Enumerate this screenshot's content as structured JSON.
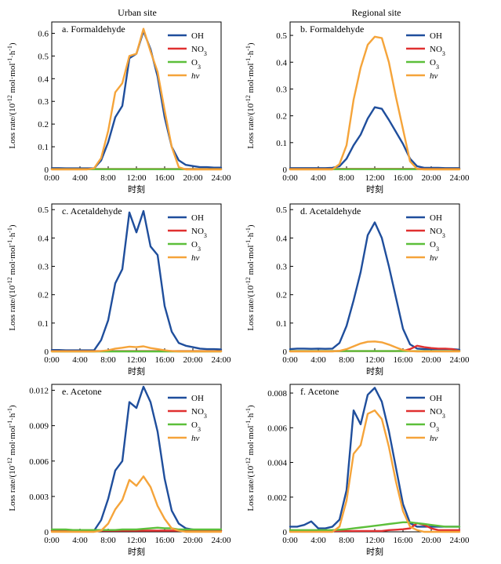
{
  "column_titles": {
    "left": "Urban site",
    "right": "Regional site"
  },
  "ylabel": "Loss rate/(10⁻¹² mol·mol⁻¹·h⁻¹)",
  "xlabel": "时刻",
  "x_tick_labels": [
    "0:00",
    "4:00",
    "8:00",
    "12:00",
    "16:00",
    "20:00",
    "24:00"
  ],
  "legend": [
    {
      "key": "OH",
      "label": "OH",
      "color": "#1f4e9c",
      "italic": false
    },
    {
      "key": "NO3",
      "label": "NO3",
      "color": "#e03030",
      "italic": false
    },
    {
      "key": "O3",
      "label": "O3",
      "color": "#5cbf3a",
      "italic": false
    },
    {
      "key": "hv",
      "label": "hv",
      "color": "#f5a43a",
      "italic": true
    }
  ],
  "chart_data": [
    {
      "type": "line",
      "title": "a. Formaldehyde",
      "site": "Urban site",
      "xlim": [
        0,
        24
      ],
      "ylim": [
        0,
        0.65
      ],
      "yticks": [
        0,
        0.1,
        0.2,
        0.3,
        0.4,
        0.5,
        0.6
      ],
      "ytick_labels": [
        "0",
        "0.1",
        "0.2",
        "0.3",
        "0.4",
        "0.5",
        "0.6"
      ],
      "x": [
        0,
        1,
        2,
        3,
        4,
        5,
        6,
        7,
        8,
        9,
        10,
        11,
        12,
        13,
        14,
        15,
        16,
        17,
        18,
        19,
        20,
        21,
        22,
        23,
        24
      ],
      "series": [
        {
          "name": "OH",
          "values": [
            0.006,
            0.006,
            0.005,
            0.005,
            0.005,
            0.005,
            0.005,
            0.04,
            0.12,
            0.23,
            0.28,
            0.49,
            0.51,
            0.61,
            0.53,
            0.41,
            0.23,
            0.1,
            0.04,
            0.02,
            0.015,
            0.01,
            0.01,
            0.008,
            0.008
          ]
        },
        {
          "name": "NO3",
          "values": [
            0.002,
            0.002,
            0.002,
            0.002,
            0.002,
            0.002,
            0.002,
            0.002,
            0.002,
            0.002,
            0.002,
            0.002,
            0.002,
            0.002,
            0.002,
            0.002,
            0.002,
            0.002,
            0.002,
            0.002,
            0.002,
            0.002,
            0.002,
            0.002,
            0.002
          ]
        },
        {
          "name": "O3",
          "values": [
            0.001,
            0.001,
            0.001,
            0.001,
            0.001,
            0.001,
            0.001,
            0.001,
            0.001,
            0.001,
            0.001,
            0.001,
            0.001,
            0.001,
            0.001,
            0.001,
            0.001,
            0.001,
            0.001,
            0.001,
            0.001,
            0.001,
            0.001,
            0.001,
            0.001
          ]
        },
        {
          "name": "hv",
          "values": [
            0,
            0,
            0,
            0,
            0,
            0,
            0.005,
            0.05,
            0.17,
            0.34,
            0.38,
            0.5,
            0.51,
            0.62,
            0.52,
            0.43,
            0.26,
            0.1,
            0.01,
            0,
            0,
            0,
            0,
            0,
            0
          ]
        }
      ]
    },
    {
      "type": "line",
      "title": "b. Formaldehyde",
      "site": "Regional site",
      "xlim": [
        0,
        24
      ],
      "ylim": [
        0,
        0.55
      ],
      "yticks": [
        0,
        0.1,
        0.2,
        0.3,
        0.4,
        0.5
      ],
      "ytick_labels": [
        "0",
        "0.1",
        "0.2",
        "0.3",
        "0.4",
        "0.5"
      ],
      "x": [
        0,
        1,
        2,
        3,
        4,
        5,
        6,
        7,
        8,
        9,
        10,
        11,
        12,
        13,
        14,
        15,
        16,
        17,
        18,
        19,
        20,
        21,
        22,
        23,
        24
      ],
      "series": [
        {
          "name": "OH",
          "values": [
            0.005,
            0.005,
            0.005,
            0.005,
            0.005,
            0.005,
            0.006,
            0.012,
            0.04,
            0.09,
            0.13,
            0.19,
            0.232,
            0.226,
            0.185,
            0.14,
            0.095,
            0.04,
            0.012,
            0.006,
            0.006,
            0.006,
            0.005,
            0.005,
            0.005
          ]
        },
        {
          "name": "NO3",
          "values": [
            0.002,
            0.002,
            0.002,
            0.002,
            0.002,
            0.002,
            0.002,
            0.002,
            0.002,
            0.002,
            0.002,
            0.002,
            0.002,
            0.002,
            0.002,
            0.002,
            0.002,
            0.002,
            0.002,
            0.002,
            0.002,
            0.002,
            0.002,
            0.002,
            0.002
          ]
        },
        {
          "name": "O3",
          "values": [
            0.001,
            0.001,
            0.001,
            0.001,
            0.001,
            0.001,
            0.001,
            0.001,
            0.001,
            0.001,
            0.001,
            0.001,
            0.001,
            0.001,
            0.001,
            0.001,
            0.001,
            0.001,
            0.001,
            0.001,
            0.001,
            0.001,
            0.001,
            0.001,
            0.001
          ]
        },
        {
          "name": "hv",
          "values": [
            0,
            0,
            0,
            0,
            0,
            0,
            0,
            0.02,
            0.09,
            0.26,
            0.38,
            0.465,
            0.495,
            0.49,
            0.4,
            0.27,
            0.15,
            0.03,
            0.002,
            0,
            0,
            0,
            0,
            0,
            0
          ]
        }
      ]
    },
    {
      "type": "line",
      "title": "c. Acetaldehyde",
      "site": "Urban site",
      "xlim": [
        0,
        24
      ],
      "ylim": [
        0,
        0.52
      ],
      "yticks": [
        0,
        0.1,
        0.2,
        0.3,
        0.4,
        0.5
      ],
      "ytick_labels": [
        "0",
        "0.1",
        "0.2",
        "0.3",
        "0.4",
        "0.5"
      ],
      "x": [
        0,
        1,
        2,
        3,
        4,
        5,
        6,
        7,
        8,
        9,
        10,
        11,
        12,
        13,
        14,
        15,
        16,
        17,
        18,
        19,
        20,
        21,
        22,
        23,
        24
      ],
      "series": [
        {
          "name": "OH",
          "values": [
            0.005,
            0.005,
            0.004,
            0.004,
            0.004,
            0.004,
            0.004,
            0.04,
            0.11,
            0.24,
            0.29,
            0.49,
            0.42,
            0.495,
            0.37,
            0.34,
            0.16,
            0.07,
            0.03,
            0.02,
            0.015,
            0.01,
            0.008,
            0.008,
            0.007
          ]
        },
        {
          "name": "NO3",
          "values": [
            0.001,
            0.001,
            0.001,
            0.001,
            0.001,
            0.001,
            0.001,
            0.001,
            0.001,
            0.001,
            0.001,
            0.001,
            0.001,
            0.001,
            0.001,
            0.001,
            0.001,
            0.001,
            0.001,
            0.001,
            0.001,
            0.001,
            0.001,
            0.001,
            0.001
          ]
        },
        {
          "name": "O3",
          "values": [
            0,
            0,
            0,
            0,
            0,
            0,
            0,
            0,
            0,
            0,
            0,
            0,
            0,
            0,
            0,
            0,
            0,
            0,
            0,
            0,
            0,
            0,
            0,
            0,
            0
          ]
        },
        {
          "name": "hv",
          "values": [
            0,
            0,
            0,
            0,
            0,
            0,
            0,
            0.001,
            0.004,
            0.01,
            0.013,
            0.017,
            0.015,
            0.018,
            0.012,
            0.008,
            0.004,
            0.001,
            0,
            0,
            0,
            0,
            0,
            0,
            0
          ]
        }
      ]
    },
    {
      "type": "line",
      "title": "d. Acetaldehyde",
      "site": "Regional site",
      "xlim": [
        0,
        24
      ],
      "ylim": [
        0,
        0.52
      ],
      "yticks": [
        0,
        0.1,
        0.2,
        0.3,
        0.4,
        0.5
      ],
      "ytick_labels": [
        "0",
        "0.1",
        "0.2",
        "0.3",
        "0.4",
        "0.5"
      ],
      "x": [
        0,
        1,
        2,
        3,
        4,
        5,
        6,
        7,
        8,
        9,
        10,
        11,
        12,
        13,
        14,
        15,
        16,
        17,
        18,
        19,
        20,
        21,
        22,
        23,
        24
      ],
      "series": [
        {
          "name": "OH",
          "values": [
            0.008,
            0.01,
            0.01,
            0.009,
            0.01,
            0.009,
            0.01,
            0.03,
            0.09,
            0.18,
            0.28,
            0.41,
            0.455,
            0.4,
            0.3,
            0.19,
            0.08,
            0.025,
            0.01,
            0.008,
            0.008,
            0.008,
            0.008,
            0.008,
            0.006
          ]
        },
        {
          "name": "NO3",
          "values": [
            0.001,
            0.001,
            0.001,
            0.001,
            0.001,
            0.001,
            0.001,
            0.001,
            0.001,
            0.001,
            0.001,
            0.001,
            0.001,
            0.001,
            0.001,
            0.001,
            0.002,
            0.008,
            0.02,
            0.015,
            0.012,
            0.01,
            0.01,
            0.008,
            0.002
          ]
        },
        {
          "name": "O3",
          "values": [
            0.001,
            0.001,
            0.001,
            0.001,
            0.001,
            0.001,
            0.001,
            0.001,
            0.001,
            0.001,
            0.001,
            0.001,
            0.001,
            0.001,
            0.001,
            0.001,
            0.001,
            0.001,
            0.001,
            0.001,
            0.001,
            0.001,
            0.001,
            0.001,
            0.001
          ]
        },
        {
          "name": "hv",
          "values": [
            0,
            0,
            0,
            0,
            0,
            0,
            0,
            0.002,
            0.008,
            0.018,
            0.028,
            0.034,
            0.035,
            0.032,
            0.024,
            0.014,
            0.005,
            0.001,
            0,
            0,
            0,
            0,
            0,
            0,
            0
          ]
        }
      ]
    },
    {
      "type": "line",
      "title": "e. Acetone",
      "site": "Urban site",
      "xlim": [
        0,
        24
      ],
      "ylim": [
        0,
        0.0125
      ],
      "yticks": [
        0,
        0.003,
        0.006,
        0.009,
        0.012
      ],
      "ytick_labels": [
        "0",
        "0.003",
        "0.006",
        "0.009",
        "0.012"
      ],
      "x": [
        0,
        1,
        2,
        3,
        4,
        5,
        6,
        7,
        8,
        9,
        10,
        11,
        12,
        13,
        14,
        15,
        16,
        17,
        18,
        19,
        20,
        21,
        22,
        23,
        24
      ],
      "series": [
        {
          "name": "OH",
          "values": [
            0.0001,
            0.0001,
            0.0001,
            0.0001,
            0.0001,
            0.0001,
            0.0001,
            0.001,
            0.0028,
            0.0052,
            0.006,
            0.011,
            0.0105,
            0.0123,
            0.011,
            0.0085,
            0.0045,
            0.0018,
            0.0007,
            0.0003,
            0.0002,
            0.0001,
            0.0001,
            0.0001,
            0.0001
          ]
        },
        {
          "name": "NO3",
          "values": [
            0.0001,
            0.0001,
            0.0001,
            0.0001,
            0.0001,
            0.0001,
            0.0001,
            0.0001,
            0.0001,
            0.0001,
            0.0001,
            0.0001,
            0.0001,
            0.0001,
            0.0001,
            0.0001,
            0.0001,
            0.0001,
            0.0001,
            0.0001,
            0.0001,
            0.0001,
            0.0001,
            0.0001,
            0.0001
          ]
        },
        {
          "name": "O3",
          "values": [
            0.0002,
            0.0002,
            0.0002,
            0.00015,
            0.00015,
            0.00015,
            0.00015,
            0.00015,
            0.00015,
            0.00015,
            0.0002,
            0.0002,
            0.0002,
            0.00025,
            0.0003,
            0.00035,
            0.0003,
            0.0003,
            0.0002,
            0.0002,
            0.0002,
            0.0002,
            0.0002,
            0.0002,
            0.0002
          ]
        },
        {
          "name": "hv",
          "values": [
            0,
            0,
            0,
            0,
            0,
            0,
            0,
            0.0001,
            0.0007,
            0.0019,
            0.0027,
            0.0044,
            0.0039,
            0.0047,
            0.0038,
            0.0022,
            0.0011,
            0.0003,
            0.0001,
            0,
            0,
            0,
            0,
            0,
            0
          ]
        }
      ]
    },
    {
      "type": "line",
      "title": "f. Acetone",
      "site": "Regional site",
      "xlim": [
        0,
        24
      ],
      "ylim": [
        0,
        0.0085
      ],
      "yticks": [
        0,
        0.002,
        0.004,
        0.006,
        0.008
      ],
      "ytick_labels": [
        "0",
        "0.002",
        "0.004",
        "0.006",
        "0.008"
      ],
      "x": [
        0,
        1,
        2,
        3,
        4,
        5,
        6,
        7,
        8,
        9,
        10,
        11,
        12,
        13,
        14,
        15,
        16,
        17,
        18,
        19,
        20,
        21,
        22,
        23,
        24
      ],
      "series": [
        {
          "name": "OH",
          "values": [
            0.0003,
            0.0003,
            0.0004,
            0.0006,
            0.0002,
            0.0002,
            0.0003,
            0.0007,
            0.0024,
            0.007,
            0.0062,
            0.0079,
            0.0083,
            0.0075,
            0.0058,
            0.0037,
            0.0016,
            0.0005,
            0.0003,
            0.0003,
            0.0003,
            0.0003,
            0.0003,
            0.0003,
            0.0003
          ]
        },
        {
          "name": "NO3",
          "values": [
            5e-05,
            5e-05,
            5e-05,
            5e-05,
            5e-05,
            5e-05,
            5e-05,
            5e-05,
            5e-05,
            5e-05,
            5e-05,
            5e-05,
            5e-05,
            5e-05,
            0.0001,
            0.00012,
            0.00015,
            0.0002,
            0.0005,
            0.0004,
            0.0002,
            0.0001,
            0.0001,
            0.0001,
            0.0001
          ]
        },
        {
          "name": "O3",
          "values": [
            0.0001,
            0.0001,
            0.0001,
            0.0001,
            0.0001,
            0.0001,
            0.0001,
            0.00012,
            0.00015,
            0.0002,
            0.00025,
            0.0003,
            0.00035,
            0.0004,
            0.00045,
            0.0005,
            0.00055,
            0.00055,
            0.0005,
            0.00045,
            0.0004,
            0.00035,
            0.0003,
            0.0003,
            0.0003
          ]
        },
        {
          "name": "hv",
          "values": [
            0,
            0,
            0,
            0,
            0,
            0,
            0,
            0.0003,
            0.0018,
            0.0045,
            0.005,
            0.0068,
            0.007,
            0.0065,
            0.0049,
            0.0029,
            0.0012,
            0.0003,
            0.0001,
            0,
            0,
            0,
            0,
            0,
            0
          ]
        }
      ]
    }
  ]
}
